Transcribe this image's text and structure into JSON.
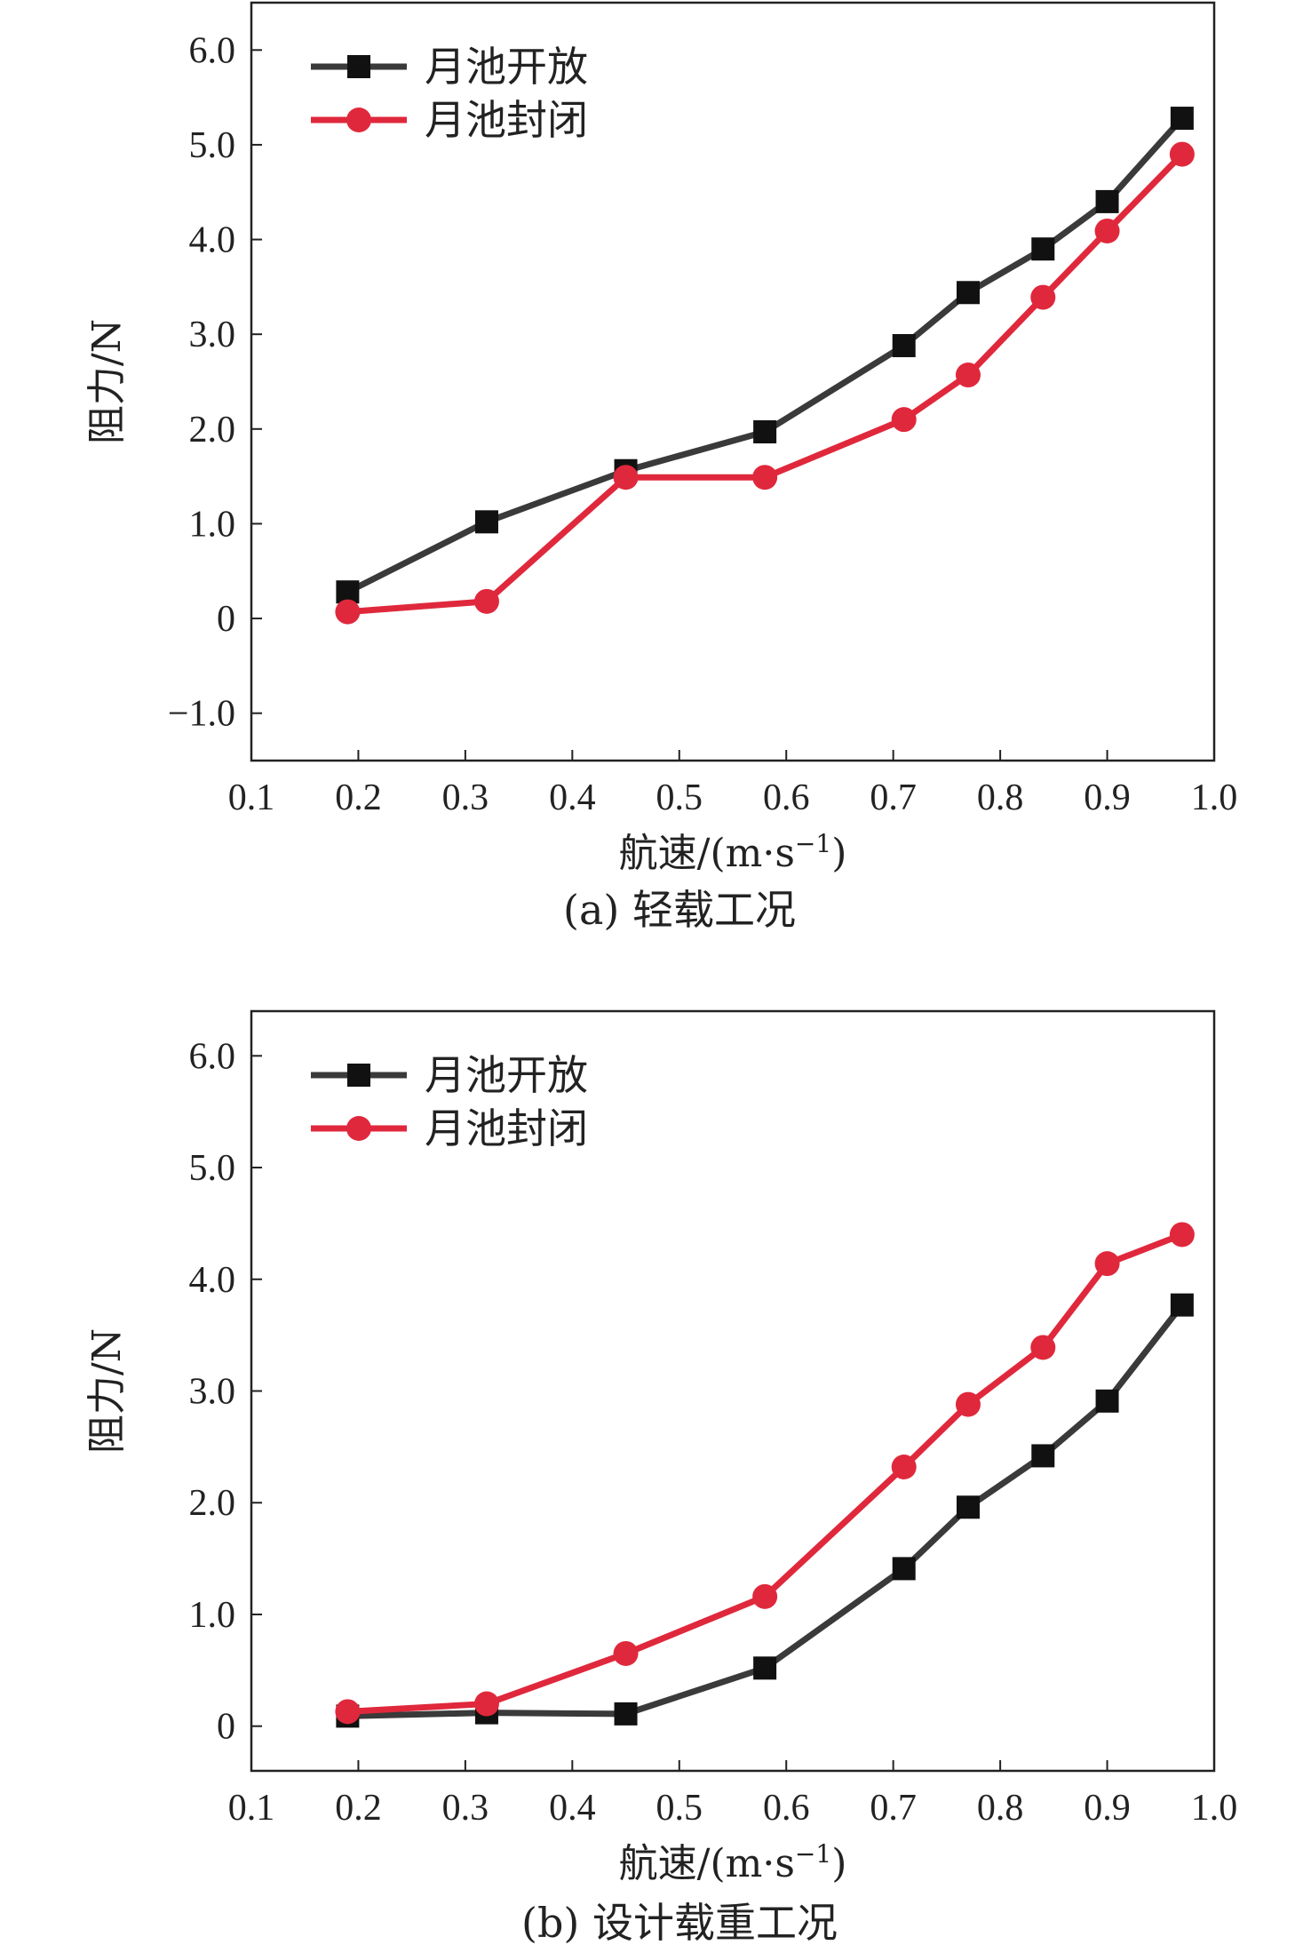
{
  "chart_data": [
    {
      "type": "line",
      "caption": "(a) 轻载工况",
      "xlabel": "航速/(m·s",
      "xlabel_sup": "−1",
      "xlabel_tail": ")",
      "ylabel": "阻力/N",
      "xlim": [
        0.1,
        1.0
      ],
      "ylim": [
        -1.5,
        6.5
      ],
      "xticks": [
        "0.1",
        "0.2",
        "0.3",
        "0.4",
        "0.5",
        "0.6",
        "0.7",
        "0.8",
        "0.9",
        "1.0"
      ],
      "yticks": [
        "−1.0",
        "0",
        "1.0",
        "2.0",
        "3.0",
        "4.0",
        "5.0",
        "6.0"
      ],
      "legend_position": "top-left",
      "series": [
        {
          "name": "月池开放",
          "color": "#3a3a3a",
          "marker": "square",
          "x": [
            0.19,
            0.32,
            0.45,
            0.58,
            0.71,
            0.77,
            0.84,
            0.9,
            0.97
          ],
          "y": [
            0.28,
            1.02,
            1.56,
            1.97,
            2.88,
            3.44,
            3.9,
            4.4,
            5.28
          ]
        },
        {
          "name": "月池封闭",
          "color": "#e0283c",
          "marker": "circle",
          "x": [
            0.19,
            0.32,
            0.45,
            0.58,
            0.71,
            0.77,
            0.84,
            0.9,
            0.97
          ],
          "y": [
            0.07,
            0.18,
            1.49,
            1.49,
            2.1,
            2.57,
            3.39,
            4.09,
            4.9
          ]
        }
      ]
    },
    {
      "type": "line",
      "caption": "(b) 设计载重工况",
      "xlabel": "航速/(m·s",
      "xlabel_sup": "−1",
      "xlabel_tail": ")",
      "ylabel": "阻力/N",
      "xlim": [
        0.1,
        1.0
      ],
      "ylim": [
        -0.4,
        6.4
      ],
      "xticks": [
        "0.1",
        "0.2",
        "0.3",
        "0.4",
        "0.5",
        "0.6",
        "0.7",
        "0.8",
        "0.9",
        "1.0"
      ],
      "yticks": [
        "0",
        "1.0",
        "2.0",
        "3.0",
        "4.0",
        "5.0",
        "6.0"
      ],
      "legend_position": "top-left",
      "series": [
        {
          "name": "月池开放",
          "color": "#3a3a3a",
          "marker": "square",
          "x": [
            0.19,
            0.32,
            0.45,
            0.58,
            0.71,
            0.77,
            0.84,
            0.9,
            0.97
          ],
          "y": [
            0.09,
            0.12,
            0.11,
            0.52,
            1.41,
            1.96,
            2.42,
            2.91,
            3.77
          ]
        },
        {
          "name": "月池封闭",
          "color": "#e0283c",
          "marker": "circle",
          "x": [
            0.19,
            0.32,
            0.45,
            0.58,
            0.71,
            0.77,
            0.84,
            0.9,
            0.97
          ],
          "y": [
            0.13,
            0.2,
            0.65,
            1.16,
            2.32,
            2.88,
            3.39,
            4.14,
            4.4
          ]
        }
      ]
    }
  ]
}
